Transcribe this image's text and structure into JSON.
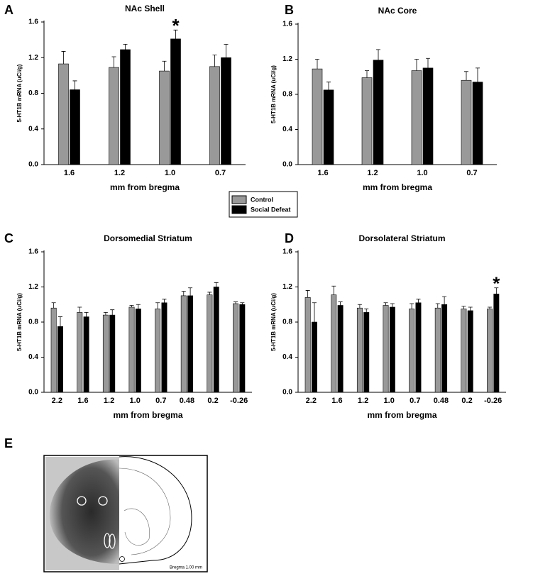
{
  "chart_data": [
    {
      "type": "bar",
      "panel": "A",
      "title": "NAc Shell",
      "xlabel": "mm from bregma",
      "ylabel": "5-HT1B mRNA (uCi/g)",
      "categories": [
        "1.6",
        "1.2",
        "1.0",
        "0.7"
      ],
      "series": [
        {
          "name": "Control",
          "color": "#999999",
          "values": [
            1.13,
            1.09,
            1.05,
            1.1
          ],
          "errors": [
            0.14,
            0.12,
            0.11,
            0.13
          ]
        },
        {
          "name": "Social Defeat",
          "color": "#000000",
          "values": [
            0.84,
            1.29,
            1.41,
            1.2
          ],
          "errors": [
            0.1,
            0.06,
            0.1,
            0.15
          ]
        }
      ],
      "ylim": [
        0,
        1.6
      ],
      "yticks": [
        {
          "value": 0,
          "label": "0.0"
        },
        0.4,
        0.8,
        1.2,
        1.6
      ],
      "annotations": [
        {
          "text": "*",
          "x": "1.0"
        }
      ]
    },
    {
      "type": "bar",
      "panel": "B",
      "title": "NAc Core",
      "xlabel": "mm from bregma",
      "ylabel": "5-HT1B mRNA (uCi/g)",
      "categories": [
        "1.6",
        "1.2",
        "1.0",
        "0.7"
      ],
      "series": [
        {
          "color": "#999999",
          "values": [
            1.09,
            0.99,
            1.07,
            0.96
          ],
          "errors": [
            0.11,
            0.08,
            0.13,
            0.1
          ]
        },
        {
          "color": "#000000",
          "values": [
            0.85,
            1.19,
            1.1,
            0.94
          ],
          "errors": [
            0.09,
            0.12,
            0.11,
            0.16
          ]
        }
      ],
      "ylim": [
        0,
        1.6
      ],
      "yticks": [
        {
          "value": 0,
          "label": "0.0"
        },
        0.4,
        0.8,
        1.2,
        1.6
      ]
    },
    {
      "type": "bar",
      "panel": "C",
      "title": "Dorsomedial Striatum",
      "xlabel": "mm from bregma",
      "ylabel": "5-HT1B mRNA (uCi/g)",
      "categories": [
        "2.2",
        "1.6",
        "1.2",
        "1.0",
        "0.7",
        "0.48",
        "0.2",
        "-0.26"
      ],
      "series": [
        {
          "color": "#999999",
          "values": [
            0.96,
            0.91,
            0.88,
            0.97,
            0.95,
            1.1,
            1.11,
            1.01
          ],
          "errors": [
            0.06,
            0.06,
            0.03,
            0.02,
            0.07,
            0.05,
            0.03,
            0.02
          ]
        },
        {
          "color": "#000000",
          "values": [
            0.75,
            0.86,
            0.88,
            0.95,
            1.02,
            1.1,
            1.2,
            1.0
          ],
          "errors": [
            0.11,
            0.05,
            0.06,
            0.05,
            0.04,
            0.09,
            0.05,
            0.02
          ]
        }
      ],
      "ylim": [
        0,
        1.6
      ],
      "yticks": [
        {
          "value": 0,
          "label": "0.0"
        },
        0.4,
        0.8,
        1.2,
        1.6
      ]
    },
    {
      "type": "bar",
      "panel": "D",
      "title": "Dorsolateral Striatum",
      "xlabel": "mm from bregma",
      "ylabel": "5-HT1B mRNA (uCi/g)",
      "categories": [
        "2.2",
        "1.6",
        "1.2",
        "1.0",
        "0.7",
        "0.48",
        "0.2",
        "-0.26"
      ],
      "series": [
        {
          "color": "#999999",
          "values": [
            1.08,
            1.11,
            0.96,
            0.99,
            0.95,
            0.96,
            0.95,
            0.95
          ],
          "errors": [
            0.08,
            0.1,
            0.04,
            0.03,
            0.06,
            0.05,
            0.03,
            0.02
          ]
        },
        {
          "color": "#000000",
          "values": [
            0.8,
            0.99,
            0.91,
            0.97,
            1.02,
            1.0,
            0.93,
            1.12
          ],
          "errors": [
            0.22,
            0.04,
            0.04,
            0.04,
            0.04,
            0.09,
            0.04,
            0.07
          ]
        }
      ],
      "ylim": [
        0,
        1.6
      ],
      "yticks": [
        {
          "value": 0,
          "label": "0.0"
        },
        0.4,
        0.8,
        1.2,
        1.6
      ],
      "annotations": [
        {
          "text": "*",
          "x": "-0.26"
        }
      ]
    }
  ],
  "panel_e": {
    "label": "E",
    "caption": "Bregma 1.00 mm"
  }
}
